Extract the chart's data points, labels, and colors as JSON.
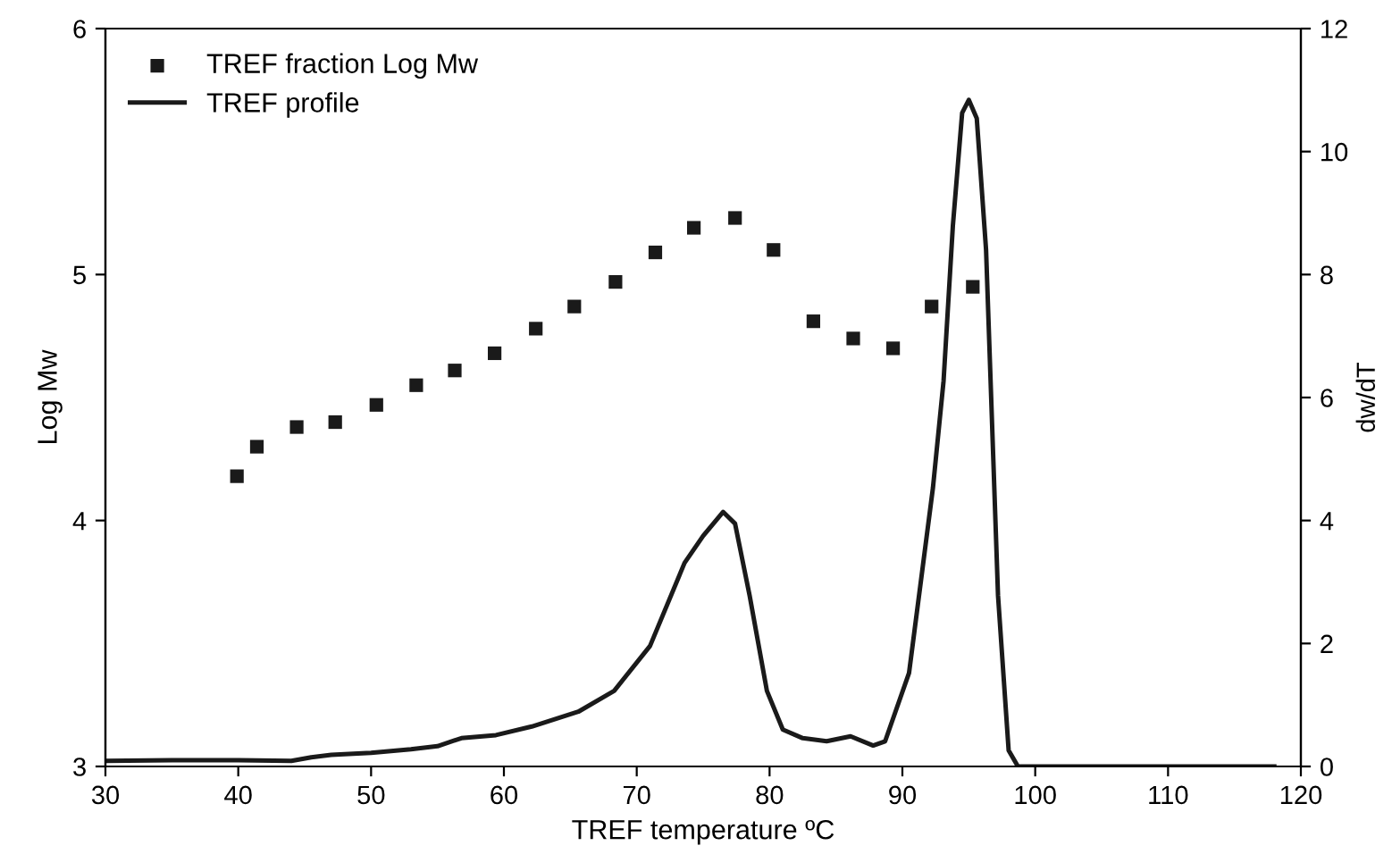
{
  "chart_data": {
    "type": "scatter",
    "xlabel": "TREF temperature ºC",
    "ylabel": "Log Mw",
    "y2label": "dw/dT",
    "xlim": [
      30,
      120
    ],
    "xticks": [
      30,
      40,
      50,
      60,
      70,
      80,
      90,
      100,
      110,
      120
    ],
    "ylim": [
      3,
      6
    ],
    "yticks": [
      3,
      4,
      5,
      6
    ],
    "y2lim": [
      0,
      12
    ],
    "y2ticks": [
      0,
      2,
      4,
      6,
      8,
      10,
      12
    ],
    "legend": "top left",
    "grid": false,
    "series": [
      {
        "name": "TREF fraction Log Mw",
        "marker": "square",
        "color": "#1a1a1a",
        "x": [
          39.9,
          41.4,
          44.4,
          47.3,
          50.4,
          53.4,
          56.3,
          59.3,
          62.4,
          65.3,
          68.4,
          71.4,
          74.3,
          77.4,
          80.3,
          83.3,
          86.3,
          89.3,
          92.2,
          95.3
        ],
        "values": [
          4.18,
          4.3,
          4.38,
          4.4,
          4.47,
          4.55,
          4.61,
          4.68,
          4.78,
          4.87,
          4.97,
          5.09,
          5.19,
          5.23,
          5.1,
          4.81,
          4.74,
          4.7,
          4.87,
          4.95
        ]
      },
      {
        "name": "TREF profile",
        "type": "line",
        "axis": "y2",
        "marker": "none",
        "line_style": "solid",
        "color": "#1a1a1a",
        "x": [
          30,
          35,
          40,
          44,
          45.5,
          47,
          50,
          53,
          55,
          56.8,
          59.4,
          62.1,
          65.6,
          68.3,
          71.0,
          73.6,
          75.0,
          76.5,
          77.4,
          78.5,
          79.8,
          81.0,
          82.5,
          84.3,
          86.1,
          87.8,
          88.7,
          90.5,
          92.3,
          93.1,
          93.8,
          94.5,
          95.0,
          95.6,
          96.3,
          97.2,
          98.0,
          98.7,
          100,
          110,
          118
        ],
        "values": [
          0.09,
          0.1,
          0.1,
          0.09,
          0.15,
          0.19,
          0.22,
          0.28,
          0.33,
          0.46,
          0.51,
          0.65,
          0.89,
          1.23,
          1.96,
          3.31,
          3.75,
          4.14,
          3.95,
          2.78,
          1.23,
          0.6,
          0.46,
          0.41,
          0.49,
          0.34,
          0.41,
          1.52,
          4.53,
          6.27,
          8.79,
          10.63,
          10.84,
          10.54,
          8.4,
          2.78,
          0.26,
          0,
          0,
          0,
          0
        ]
      }
    ]
  }
}
